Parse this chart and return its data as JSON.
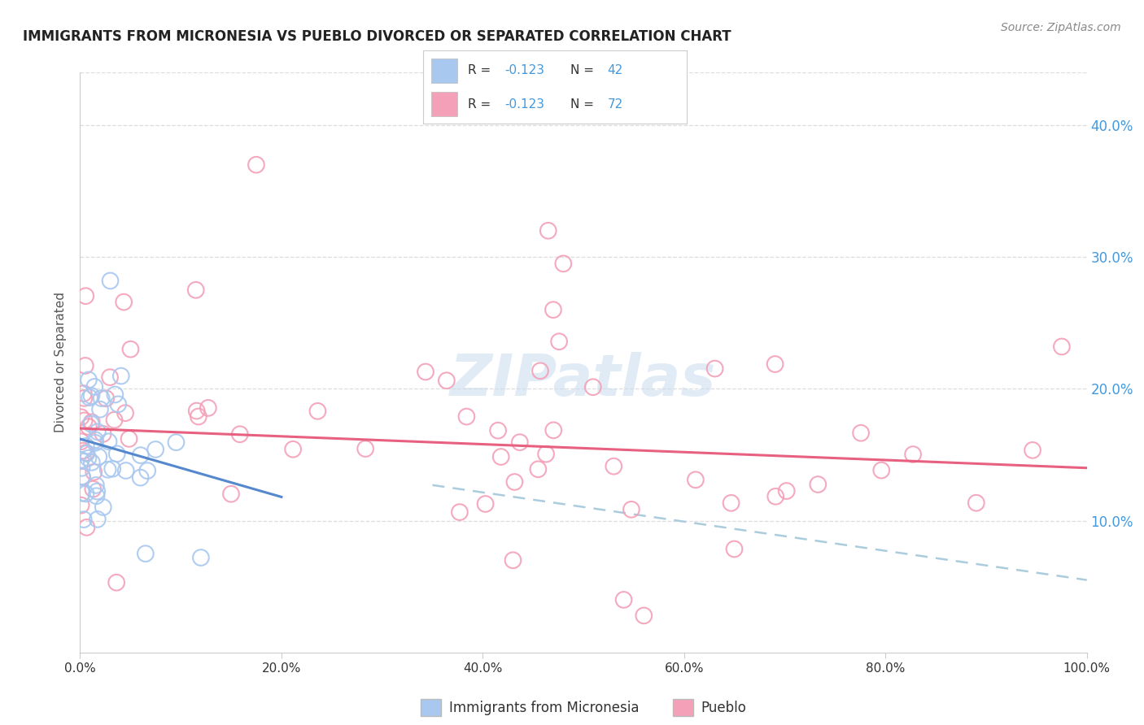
{
  "title": "IMMIGRANTS FROM MICRONESIA VS PUEBLO DIVORCED OR SEPARATED CORRELATION CHART",
  "source_text": "Source: ZipAtlas.com",
  "ylabel": "Divorced or Separated",
  "x_label_bottom": "Immigrants from Micronesia",
  "legend_label1": "Immigrants from Micronesia",
  "legend_label2": "Pueblo",
  "color_blue": "#A8C8F0",
  "color_pink": "#F4A0B8",
  "color_blue_line": "#5588CC",
  "color_pink_line": "#E86080",
  "color_dashed": "#AACCDD",
  "color_ytick": "#4499DD",
  "background_color": "#FFFFFF",
  "xlim": [
    0.0,
    1.0
  ],
  "ylim": [
    0.0,
    0.44
  ],
  "ytick_labels": [
    "",
    "10.0%",
    "20.0%",
    "30.0%",
    "40.0%"
  ],
  "ytick_values": [
    0.0,
    0.1,
    0.2,
    0.3,
    0.4
  ],
  "xtick_labels": [
    "0.0%",
    "20.0%",
    "40.0%",
    "60.0%",
    "80.0%",
    "100.0%"
  ],
  "xtick_values": [
    0.0,
    0.2,
    0.4,
    0.6,
    0.8,
    1.0
  ],
  "blue_trend_x0": 0.0,
  "blue_trend_y0": 0.162,
  "blue_trend_x1": 0.2,
  "blue_trend_y1": 0.118,
  "pink_trend_x0": 0.0,
  "pink_trend_y0": 0.17,
  "pink_trend_x1": 1.0,
  "pink_trend_y1": 0.14,
  "dash_trend_x0": 0.35,
  "dash_trend_y0": 0.127,
  "dash_trend_x1": 1.0,
  "dash_trend_y1": 0.055,
  "watermark": "ZIPatlas",
  "legend_r_color": "#4499DD",
  "legend_n_color": "#4499DD"
}
